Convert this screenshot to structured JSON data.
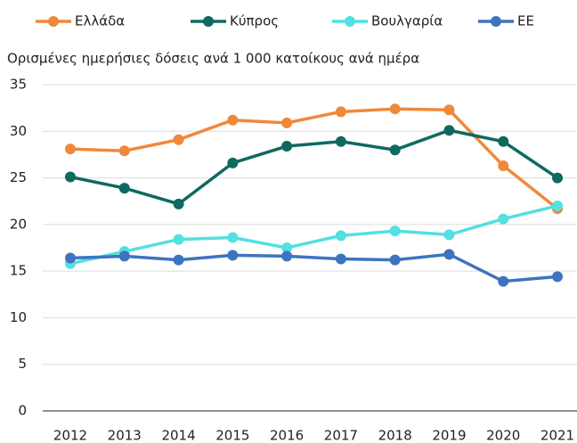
{
  "chart_data": {
    "type": "line",
    "subtitle": "Ορισμένες ημερήσιες δόσεις ανά 1 000 κατοίκους ανά ημέρα",
    "categories": [
      "2012",
      "2013",
      "2014",
      "2015",
      "2016",
      "2017",
      "2018",
      "2019",
      "2020",
      "2021"
    ],
    "series": [
      {
        "name": "Ελλάδα",
        "color": "#f0883a",
        "values": [
          28.1,
          27.9,
          29.1,
          31.2,
          30.9,
          32.1,
          32.4,
          32.3,
          26.3,
          21.7
        ]
      },
      {
        "name": "Κύπρος",
        "color": "#0e6a60",
        "values": [
          25.1,
          23.9,
          22.2,
          26.6,
          28.4,
          28.9,
          28.0,
          30.1,
          28.9,
          25.0
        ]
      },
      {
        "name": "Βουλγαρία",
        "color": "#52e0e0",
        "values": [
          15.8,
          17.1,
          18.4,
          18.6,
          17.5,
          18.8,
          19.3,
          18.9,
          20.6,
          22.0
        ]
      },
      {
        "name": "ΕΕ",
        "color": "#3d74bf",
        "values": [
          16.4,
          16.6,
          16.2,
          16.7,
          16.6,
          16.3,
          16.2,
          16.8,
          13.9,
          14.4
        ]
      }
    ],
    "ylim": [
      0,
      35
    ],
    "yticks": [
      0,
      5,
      10,
      15,
      20,
      25,
      30,
      35
    ],
    "grid": true,
    "legend": "top"
  }
}
